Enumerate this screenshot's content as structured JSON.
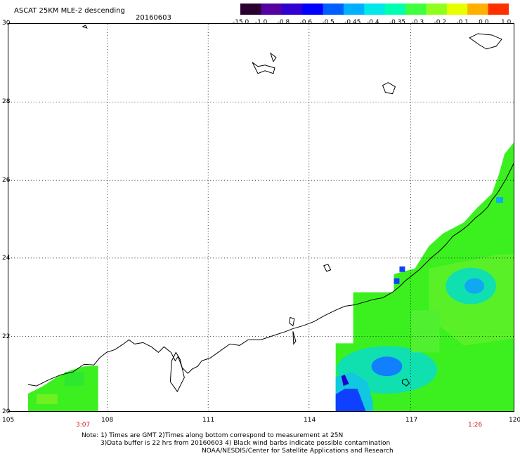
{
  "header": {
    "title": "ASCAT 25KM MLE-2 descending",
    "date": "20160603"
  },
  "colorbar": {
    "labels": [
      "-15.0",
      "-1.0",
      "-0.8",
      "-0.6",
      "-0.5",
      "-0.45",
      "-0.4",
      "-0.35",
      "-0.3",
      "-0.2",
      "-0.1",
      "0.0",
      "1.0"
    ],
    "colors": [
      "#2a0030",
      "#5500a0",
      "#3000d0",
      "#0000ff",
      "#0060ff",
      "#00b0ff",
      "#00e8e8",
      "#00ffb0",
      "#40ff40",
      "#90ff20",
      "#e8ff00",
      "#ffb000",
      "#ff3000"
    ]
  },
  "axes": {
    "lat_labels": [
      "30",
      "28",
      "26",
      "24",
      "22",
      "20"
    ],
    "lon_labels": [
      "105",
      "108",
      "111",
      "114",
      "117",
      "120"
    ]
  },
  "pass_times": {
    "left": "3:07",
    "right": "1:26"
  },
  "notes": {
    "line1": "Note: 1) Times are GMT 2)Times along bottom correspond to measurement at 25N",
    "line2": "3)Data buffer is 22 hrs from 20160603 4) Black wind barbs indicate possible contamination",
    "line3": "NOAA/NESDIS/Center for Satellite Applications and Research"
  },
  "colors": {
    "swath_green": "#3cf020",
    "swath_light": "#70f020",
    "swath_cyan": "#10e0c0",
    "swath_blue": "#1040ff",
    "swath_dark_blue": "#2000d0"
  }
}
